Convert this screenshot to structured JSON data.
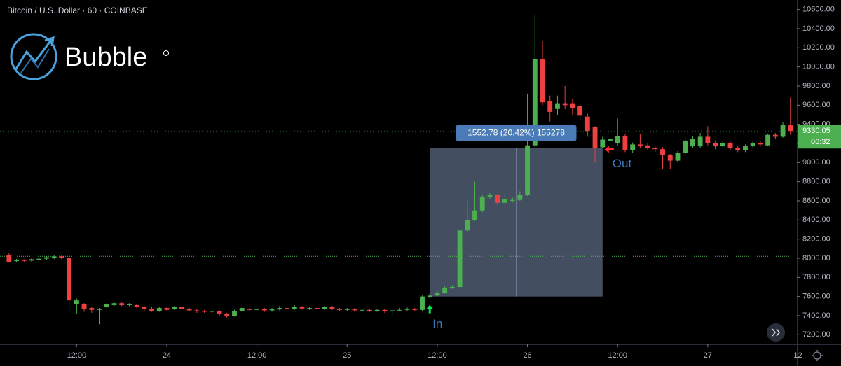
{
  "chart_data": {
    "type": "candlestick",
    "title": "Bitcoin / U.S. Dollar · 60 · COINBASE",
    "brand": "Bubble",
    "x": [
      -21,
      -20,
      -19,
      -18,
      -17,
      -16,
      -15,
      -14,
      -13,
      -12,
      -11,
      -10,
      -9,
      -8,
      -7,
      -6,
      -5,
      -4,
      -3,
      -2,
      -1,
      0,
      1,
      2,
      3,
      4,
      5,
      6,
      7,
      8,
      9,
      10,
      11,
      12,
      13,
      14,
      15,
      16,
      17,
      18,
      19,
      20,
      21,
      22,
      23,
      24,
      25,
      26,
      27,
      28,
      29,
      30,
      31,
      32,
      33,
      34,
      35,
      36,
      37,
      38,
      39,
      40,
      41,
      42,
      43,
      44,
      45,
      46,
      47,
      48,
      49,
      50,
      51,
      52,
      53,
      54,
      55,
      56,
      57,
      58,
      59,
      60,
      61,
      62,
      63,
      64,
      65,
      66,
      67,
      68,
      69,
      70,
      71,
      72,
      73,
      74,
      75,
      76,
      77,
      78,
      79,
      80,
      81,
      82,
      83
    ],
    "open": [
      8030,
      7970,
      7980,
      7975,
      7985,
      7995,
      8000,
      8020,
      8000,
      7520,
      7520,
      7480,
      7460,
      7490,
      7510,
      7530,
      7510,
      7510,
      7490,
      7470,
      7450,
      7480,
      7470,
      7490,
      7470,
      7455,
      7450,
      7440,
      7450,
      7420,
      7400,
      7450,
      7470,
      7460,
      7470,
      7455,
      7465,
      7480,
      7470,
      7490,
      7475,
      7480,
      7470,
      7490,
      7470,
      7460,
      7470,
      7455,
      7460,
      7450,
      7460,
      7450,
      7455,
      7460,
      7470,
      7460,
      7590,
      7610,
      7640,
      7690,
      7700,
      8290,
      8400,
      8500,
      8640,
      8660,
      8580,
      8600,
      8610,
      8660,
      9180,
      10080,
      9640,
      9560,
      9620,
      9620,
      9590,
      9480,
      9370,
      9160,
      9230,
      9200,
      9280,
      9130,
      9190,
      9180,
      9150,
      9140,
      9080,
      9020,
      9100,
      9170,
      9170,
      9270,
      9200,
      9170,
      9200,
      9150,
      9130,
      9170,
      9200,
      9180,
      9290,
      9270,
      9390
    ],
    "high": [
      8050,
      7995,
      7990,
      8000,
      8010,
      8020,
      8030,
      8030,
      8010,
      7580,
      7530,
      7490,
      7480,
      7530,
      7540,
      7545,
      7530,
      7520,
      7500,
      7490,
      7495,
      7490,
      7500,
      7500,
      7480,
      7470,
      7460,
      7460,
      7460,
      7430,
      7460,
      7490,
      7480,
      7490,
      7480,
      7480,
      7500,
      7490,
      7510,
      7500,
      7495,
      7490,
      7500,
      7500,
      7480,
      7480,
      7480,
      7475,
      7470,
      7470,
      7470,
      7470,
      7480,
      7485,
      7480,
      7610,
      7640,
      7660,
      7710,
      7720,
      8300,
      8600,
      8800,
      8660,
      8680,
      8670,
      8660,
      8640,
      8700,
      9720,
      10540,
      10270,
      9700,
      9700,
      9800,
      9660,
      9610,
      9510,
      9380,
      9270,
      9280,
      9460,
      9300,
      9210,
      9300,
      9200,
      9170,
      9160,
      9090,
      9120,
      9260,
      9280,
      9310,
      9380,
      9230,
      9230,
      9220,
      9170,
      9190,
      9220,
      9230,
      9300,
      9310,
      9420,
      9680
    ],
    "low": [
      7960,
      7955,
      7960,
      7965,
      7975,
      7985,
      7990,
      7990,
      7450,
      7420,
      7440,
      7430,
      7310,
      7480,
      7500,
      7500,
      7500,
      7480,
      7450,
      7440,
      7440,
      7450,
      7460,
      7460,
      7445,
      7430,
      7430,
      7430,
      7390,
      7380,
      7390,
      7440,
      7450,
      7450,
      7440,
      7440,
      7455,
      7460,
      7460,
      7465,
      7460,
      7460,
      7460,
      7460,
      7450,
      7450,
      7440,
      7440,
      7440,
      7440,
      7430,
      7400,
      7445,
      7450,
      7450,
      7450,
      7580,
      7600,
      7630,
      7680,
      7690,
      8270,
      8390,
      8480,
      8620,
      8560,
      8570,
      8580,
      8600,
      8650,
      9160,
      9600,
      9430,
      9500,
      9560,
      9500,
      9440,
      9270,
      9000,
      9150,
      9200,
      9180,
      9110,
      9100,
      9150,
      9130,
      9110,
      8930,
      8930,
      9000,
      9080,
      9150,
      9150,
      9180,
      9140,
      9160,
      9130,
      9110,
      9110,
      9150,
      9170,
      9170,
      9250,
      9260,
      9290
    ],
    "close": [
      7960,
      7985,
      7975,
      7990,
      7995,
      8010,
      8020,
      8005,
      7560,
      7560,
      7470,
      7460,
      7470,
      7520,
      7530,
      7510,
      7520,
      7490,
      7470,
      7450,
      7480,
      7460,
      7490,
      7470,
      7455,
      7445,
      7440,
      7450,
      7420,
      7400,
      7450,
      7480,
      7460,
      7470,
      7455,
      7465,
      7480,
      7470,
      7490,
      7475,
      7480,
      7470,
      7490,
      7470,
      7460,
      7470,
      7455,
      7460,
      7450,
      7460,
      7450,
      7455,
      7460,
      7470,
      7460,
      7600,
      7610,
      7640,
      7690,
      7700,
      8290,
      8400,
      8500,
      8640,
      8660,
      8580,
      8620,
      8610,
      8660,
      9180,
      10080,
      9630,
      9530,
      9620,
      9600,
      9570,
      9490,
      9330,
      9150,
      9240,
      9250,
      9280,
      9130,
      9190,
      9170,
      9150,
      9140,
      9080,
      9020,
      9100,
      9230,
      9250,
      9270,
      9200,
      9170,
      9200,
      9150,
      9130,
      9170,
      9200,
      9190,
      9290,
      9270,
      9390,
      9330
    ],
    "up_color": "#4caf50",
    "down_color": "#ef4040",
    "xlim": [
      -22.2,
      83.86
    ],
    "ylim": [
      7100,
      10700
    ],
    "xticks": [
      {
        "value": -12,
        "label": "12:00"
      },
      {
        "value": 0,
        "label": "24"
      },
      {
        "value": 12,
        "label": "12:00"
      },
      {
        "value": 24,
        "label": "25"
      },
      {
        "value": 36,
        "label": "12:00"
      },
      {
        "value": 48,
        "label": "26"
      },
      {
        "value": 60,
        "label": "12:00"
      },
      {
        "value": 72,
        "label": "27"
      },
      {
        "value": 84,
        "label": "12"
      }
    ],
    "yticks": [
      {
        "value": 7200,
        "label": "7200.00"
      },
      {
        "value": 7400,
        "label": "7400.00"
      },
      {
        "value": 7600,
        "label": "7600.00"
      },
      {
        "value": 7800,
        "label": "7800.00"
      },
      {
        "value": 8000,
        "label": "8000.00"
      },
      {
        "value": 8200,
        "label": "8200.00"
      },
      {
        "value": 8400,
        "label": "8400.00"
      },
      {
        "value": 8600,
        "label": "8600.00"
      },
      {
        "value": 8800,
        "label": "8800.00"
      },
      {
        "value": 9000,
        "label": "9000.00"
      },
      {
        "value": 9200,
        "label": "9200.00"
      },
      {
        "value": 9400,
        "label": "9400.00"
      },
      {
        "value": 9600,
        "label": "9600.00"
      },
      {
        "value": 9800,
        "label": "9800.00"
      },
      {
        "value": 10000,
        "label": "10000.00"
      },
      {
        "value": 10200,
        "label": "10200.00"
      },
      {
        "value": 10400,
        "label": "10400.00"
      },
      {
        "value": 10600,
        "label": "10600.00"
      }
    ],
    "price_line": 8020,
    "last_price": 9330.05,
    "countdown": "06:32",
    "measure": {
      "x": [
        35,
        58
      ],
      "from": 7600,
      "to": 9152.78,
      "label": "1552.78 (20.42%) 155278",
      "color": "#5a6a80"
    },
    "in_label": "In",
    "out_label": "Out"
  }
}
